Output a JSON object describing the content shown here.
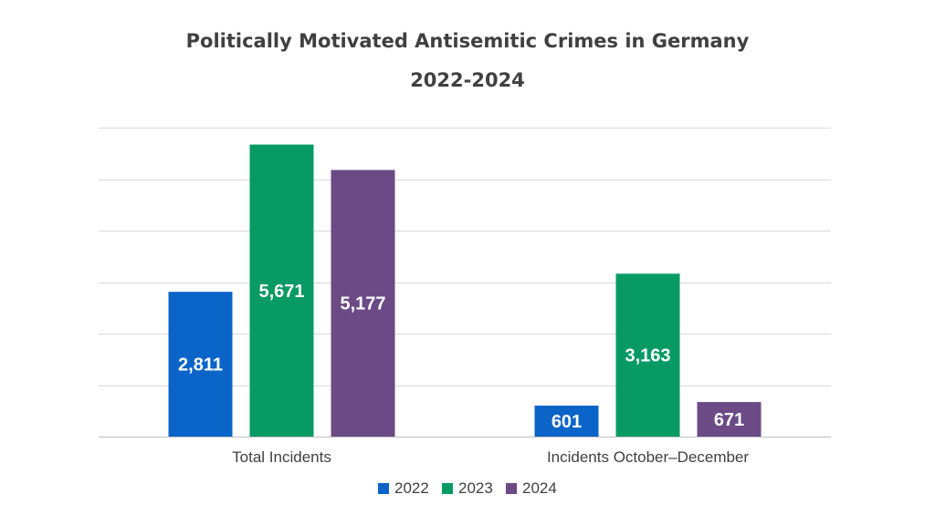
{
  "chart_data": {
    "type": "bar",
    "title": "Politically Motivated Antisemitic Crimes in Germany",
    "subtitle": "2022-2024",
    "categories": [
      "Total Incidents",
      "Incidents October–December"
    ],
    "series": [
      {
        "name": "2022",
        "color": "#0b64c8",
        "values": [
          2811,
          601
        ],
        "labels": [
          "2,811",
          "601"
        ]
      },
      {
        "name": "2023",
        "color": "#079a64",
        "values": [
          5671,
          3163
        ],
        "labels": [
          "5,671",
          "3,163"
        ]
      },
      {
        "name": "2024",
        "color": "#6b4a86",
        "values": [
          5177,
          671
        ],
        "labels": [
          "5,177",
          "671"
        ]
      }
    ],
    "ylim": [
      0,
      6000
    ],
    "grid": true,
    "legend": "bottom"
  }
}
